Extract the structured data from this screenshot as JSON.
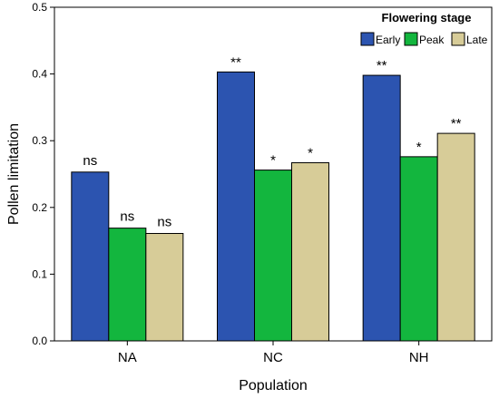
{
  "chart_data": {
    "type": "bar",
    "xlabel": "Population",
    "ylabel": "Pollen limitation",
    "ylim": [
      0,
      0.5
    ],
    "yticks": [
      "0.0",
      "0.1",
      "0.2",
      "0.3",
      "0.4",
      "0.5"
    ],
    "categories": [
      "NA",
      "NC",
      "NH"
    ],
    "legend": {
      "title": "Flowering stage",
      "placement": "top-right"
    },
    "grid": false,
    "series": [
      {
        "name": "Early",
        "color": "#2c54b0",
        "values": [
          0.253,
          0.403,
          0.398
        ],
        "labels": [
          "ns",
          "**",
          "**"
        ]
      },
      {
        "name": "Peak",
        "color": "#13b63e",
        "values": [
          0.169,
          0.256,
          0.276
        ],
        "labels": [
          "ns",
          "*",
          "*"
        ]
      },
      {
        "name": "Late",
        "color": "#d7cc98",
        "values": [
          0.161,
          0.267,
          0.311
        ],
        "labels": [
          "ns",
          "*",
          "**"
        ]
      }
    ]
  }
}
